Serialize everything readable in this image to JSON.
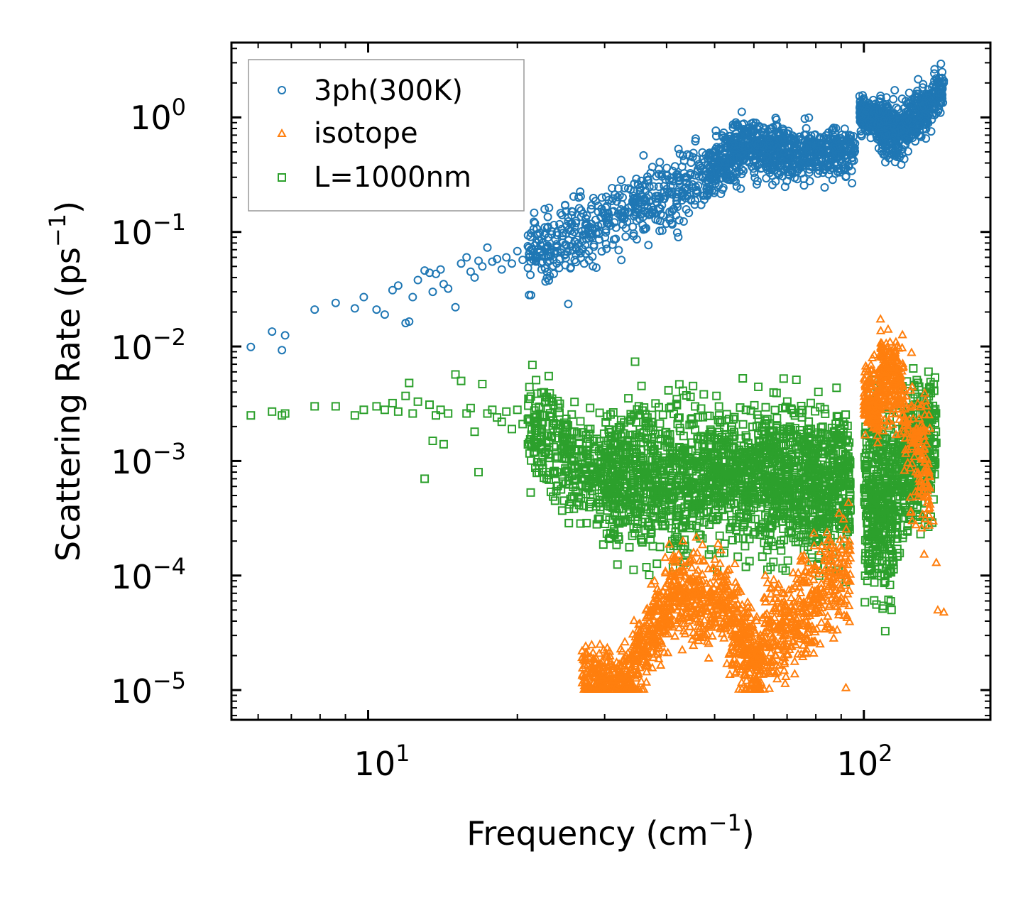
{
  "chart_data": {
    "type": "scatter",
    "title": "",
    "xlabel": "Frequency (cm",
    "xlabel_sup": "−1",
    "xlabel_end": ")",
    "ylabel": "Scattering Rate (ps",
    "ylabel_sup": "−1",
    "ylabel_end": ")",
    "xscale": "log",
    "yscale": "log",
    "xlim": [
      5.3,
      180
    ],
    "ylim": [
      5.5e-06,
      4.5
    ],
    "x_ticks": [
      {
        "value": 10,
        "base": "10",
        "exp": "1"
      },
      {
        "value": 100,
        "base": "10",
        "exp": "2"
      }
    ],
    "y_ticks": [
      {
        "value": 1,
        "base": "10",
        "exp": "0"
      },
      {
        "value": 0.1,
        "base": "10",
        "exp": "−1"
      },
      {
        "value": 0.01,
        "base": "10",
        "exp": "−2"
      },
      {
        "value": 0.001,
        "base": "10",
        "exp": "−3"
      },
      {
        "value": 0.0001,
        "base": "10",
        "exp": "−4"
      },
      {
        "value": 1e-05,
        "base": "10",
        "exp": "−5"
      }
    ],
    "legend_position": "top-left",
    "series": [
      {
        "name": "3ph(300K)",
        "marker": "circle",
        "color": "#1f77b4",
        "points": [
          [
            5.8,
            0.0099
          ],
          [
            6.4,
            0.0135
          ],
          [
            6.7,
            0.0093
          ],
          [
            6.8,
            0.0125
          ],
          [
            7.8,
            0.021
          ],
          [
            8.6,
            0.024
          ],
          [
            9.4,
            0.0215
          ],
          [
            9.8,
            0.027
          ],
          [
            10.4,
            0.021
          ],
          [
            10.8,
            0.019
          ],
          [
            11.2,
            0.031
          ],
          [
            11.5,
            0.034
          ],
          [
            11.9,
            0.016
          ],
          [
            12.1,
            0.0165
          ],
          [
            12.3,
            0.027
          ],
          [
            12.6,
            0.038
          ],
          [
            13.0,
            0.046
          ],
          [
            13.3,
            0.044
          ],
          [
            13.5,
            0.03
          ],
          [
            13.7,
            0.043
          ],
          [
            14.0,
            0.047
          ],
          [
            14.2,
            0.035
          ],
          [
            14.5,
            0.032
          ],
          [
            15.0,
            0.022
          ],
          [
            15.4,
            0.053
          ],
          [
            15.8,
            0.06
          ],
          [
            16.1,
            0.045
          ],
          [
            16.4,
            0.04
          ],
          [
            16.7,
            0.056
          ],
          [
            17.0,
            0.05
          ],
          [
            17.4,
            0.073
          ],
          [
            17.8,
            0.055
          ],
          [
            18.2,
            0.058
          ],
          [
            18.6,
            0.047
          ],
          [
            19.0,
            0.06
          ],
          [
            19.5,
            0.053
          ],
          [
            20.0,
            0.068
          ],
          [
            20.5,
            0.057
          ],
          [
            21.0,
            0.075
          ],
          [
            21.5,
            0.062
          ]
        ],
        "bands": [
          {
            "x0": 21,
            "x1": 48,
            "y0": 0.062,
            "y1": 0.3,
            "spread": 0.16,
            "n": 480,
            "seed": 11
          },
          {
            "x0": 48,
            "x1": 58,
            "y0": 0.3,
            "y1": 0.58,
            "spread": 0.13,
            "n": 260,
            "seed": 12
          },
          {
            "x0": 58,
            "x1": 70,
            "y0": 0.58,
            "y1": 0.45,
            "spread": 0.12,
            "n": 260,
            "seed": 13
          },
          {
            "x0": 70,
            "x1": 96,
            "y0": 0.48,
            "y1": 0.5,
            "spread": 0.1,
            "n": 320,
            "seed": 14
          },
          {
            "x0": 98,
            "x1": 107,
            "y0": 1.1,
            "y1": 0.95,
            "spread": 0.07,
            "n": 160,
            "seed": 15
          },
          {
            "x0": 107,
            "x1": 118,
            "y0": 0.9,
            "y1": 0.7,
            "spread": 0.12,
            "n": 200,
            "seed": 16
          },
          {
            "x0": 118,
            "x1": 145,
            "y0": 0.75,
            "y1": 1.75,
            "spread": 0.1,
            "n": 300,
            "seed": 17
          }
        ]
      },
      {
        "name": "isotope",
        "marker": "triangle",
        "color": "#ff7f0e",
        "points": [
          [
            92,
            1.05e-05
          ],
          [
            138,
            0.0003
          ],
          [
            140,
            0.00013
          ],
          [
            141,
            5e-05
          ],
          [
            145,
            4.8e-05
          ],
          [
            128,
            0.0018
          ],
          [
            133,
            0.00085
          ],
          [
            136,
            0.00042
          ]
        ],
        "bands": [
          {
            "x0": 27,
            "x1": 34,
            "y0": 1.3e-05,
            "y1": 1.2e-05,
            "spread": 0.12,
            "n": 260,
            "seed": 21
          },
          {
            "x0": 34,
            "x1": 42,
            "y0": 1.5e-05,
            "y1": 8e-05,
            "spread": 0.18,
            "n": 280,
            "seed": 22
          },
          {
            "x0": 42,
            "x1": 54,
            "y0": 7e-05,
            "y1": 5e-05,
            "spread": 0.2,
            "n": 300,
            "seed": 23
          },
          {
            "x0": 54,
            "x1": 62,
            "y0": 3.5e-05,
            "y1": 1.5e-05,
            "spread": 0.2,
            "n": 260,
            "seed": 24
          },
          {
            "x0": 62,
            "x1": 94,
            "y0": 2.5e-05,
            "y1": 0.00012,
            "spread": 0.22,
            "n": 420,
            "seed": 25
          },
          {
            "x0": 100,
            "x1": 108,
            "y0": 0.004,
            "y1": 0.003,
            "spread": 0.16,
            "n": 160,
            "seed": 26
          },
          {
            "x0": 108,
            "x1": 120,
            "y0": 0.006,
            "y1": 0.004,
            "spread": 0.18,
            "n": 200,
            "seed": 27
          },
          {
            "x0": 120,
            "x1": 136,
            "y0": 0.002,
            "y1": 0.0007,
            "spread": 0.25,
            "n": 140,
            "seed": 28
          }
        ]
      },
      {
        "name": "L=1000nm",
        "marker": "square",
        "color": "#2ca02c",
        "points": [
          [
            5.8,
            0.0025
          ],
          [
            6.4,
            0.0027
          ],
          [
            6.7,
            0.0025
          ],
          [
            6.8,
            0.0026
          ],
          [
            7.8,
            0.003
          ],
          [
            8.6,
            0.003
          ],
          [
            9.4,
            0.0025
          ],
          [
            9.8,
            0.0028
          ],
          [
            10.4,
            0.003
          ],
          [
            10.8,
            0.0028
          ],
          [
            11.2,
            0.0032
          ],
          [
            11.5,
            0.0027
          ],
          [
            11.9,
            0.0037
          ],
          [
            12.1,
            0.0048
          ],
          [
            12.3,
            0.0026
          ],
          [
            12.6,
            0.0033
          ],
          [
            13.0,
            0.0007
          ],
          [
            13.3,
            0.0031
          ],
          [
            13.5,
            0.0015
          ],
          [
            13.7,
            0.0025
          ],
          [
            14.0,
            0.0028
          ],
          [
            14.2,
            0.0014
          ],
          [
            14.5,
            0.0026
          ],
          [
            15.0,
            0.0057
          ],
          [
            15.4,
            0.005
          ],
          [
            15.8,
            0.0026
          ],
          [
            16.1,
            0.0029
          ],
          [
            16.4,
            0.0018
          ],
          [
            16.7,
            0.0008
          ],
          [
            17.0,
            0.0047
          ],
          [
            17.4,
            0.0026
          ],
          [
            17.8,
            0.0028
          ],
          [
            18.2,
            0.0024
          ],
          [
            18.6,
            0.0022
          ],
          [
            19.0,
            0.0027
          ],
          [
            19.5,
            0.0019
          ],
          [
            20.0,
            0.0028
          ],
          [
            20.5,
            0.0021
          ],
          [
            21.0,
            0.0023
          ],
          [
            22.5,
            0.0025
          ]
        ],
        "bands": [
          {
            "x0": 21,
            "x1": 30,
            "y0": 0.0019,
            "y1": 0.0007,
            "spread": 0.22,
            "n": 320,
            "seed": 31
          },
          {
            "x0": 30,
            "x1": 62,
            "y0": 0.00075,
            "y1": 0.00075,
            "spread": 0.3,
            "n": 1100,
            "seed": 32
          },
          {
            "x0": 62,
            "x1": 94,
            "y0": 0.00075,
            "y1": 0.00065,
            "spread": 0.3,
            "n": 800,
            "seed": 33
          },
          {
            "x0": 100,
            "x1": 115,
            "y0": 0.0005,
            "y1": 0.0004,
            "spread": 0.38,
            "n": 360,
            "seed": 34
          },
          {
            "x0": 115,
            "x1": 140,
            "y0": 0.0008,
            "y1": 0.0015,
            "spread": 0.32,
            "n": 360,
            "seed": 35
          }
        ]
      }
    ]
  }
}
